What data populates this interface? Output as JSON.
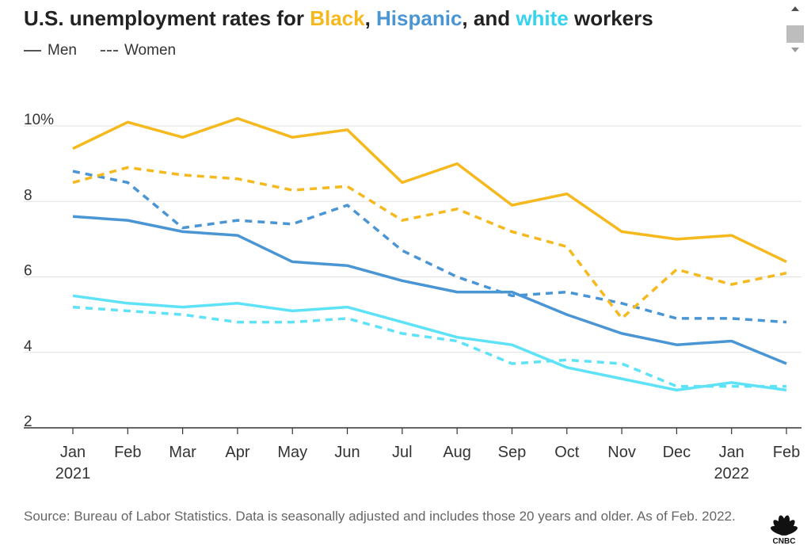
{
  "title": {
    "prefix": "U.S. unemployment rates for ",
    "group1": "Black",
    "sep1": ", ",
    "group2": "Hispanic",
    "sep2": ", and ",
    "group3": "white",
    "suffix": " workers"
  },
  "legend": {
    "men": "Men",
    "women": "Women"
  },
  "source": "Source: Bureau of Labor Statistics. Data is seasonally adjusted and includes those 20 years and older. As of Feb. 2022.",
  "logo_text": "CNBC",
  "colors": {
    "black": "#f5b91e",
    "hispanic": "#4a95d4",
    "white": "#5ee2f7",
    "grid": "#e1e1e1",
    "axis": "#333333"
  },
  "chart_data": {
    "type": "line",
    "title": "U.S. unemployment rates for Black, Hispanic, and white workers",
    "categories": [
      "Jan",
      "Feb",
      "Mar",
      "Apr",
      "May",
      "Jun",
      "Jul",
      "Aug",
      "Sep",
      "Oct",
      "Nov",
      "Dec",
      "Jan",
      "Feb"
    ],
    "year_labels": [
      {
        "index": 0,
        "label": "2021"
      },
      {
        "index": 12,
        "label": "2022"
      }
    ],
    "ylim": [
      2,
      10
    ],
    "yticks": [
      2,
      4,
      6,
      8,
      10
    ],
    "ytick_labels": [
      "2",
      "4",
      "6",
      "8",
      "10%"
    ],
    "grid": true,
    "series": [
      {
        "name": "Black Men",
        "group": "black",
        "style": "solid",
        "values": [
          9.4,
          10.1,
          9.7,
          10.2,
          9.7,
          9.9,
          8.5,
          9.0,
          7.9,
          8.2,
          7.2,
          7.0,
          7.1,
          6.4
        ]
      },
      {
        "name": "Black Women",
        "group": "black",
        "style": "dashed",
        "values": [
          8.5,
          8.9,
          8.7,
          8.6,
          8.3,
          8.4,
          7.5,
          7.8,
          7.2,
          6.8,
          4.9,
          6.2,
          5.8,
          6.1
        ]
      },
      {
        "name": "Hispanic Men",
        "group": "hispanic",
        "style": "solid",
        "values": [
          7.6,
          7.5,
          7.2,
          7.1,
          6.4,
          6.3,
          5.9,
          5.6,
          5.6,
          5.0,
          4.5,
          4.2,
          4.3,
          3.7
        ]
      },
      {
        "name": "Hispanic Women",
        "group": "hispanic",
        "style": "dashed",
        "values": [
          8.8,
          8.5,
          7.3,
          7.5,
          7.4,
          7.9,
          6.7,
          6.0,
          5.5,
          5.6,
          5.3,
          4.9,
          4.9,
          4.8
        ]
      },
      {
        "name": "white Men",
        "group": "white",
        "style": "solid",
        "values": [
          5.5,
          5.3,
          5.2,
          5.3,
          5.1,
          5.2,
          4.8,
          4.4,
          4.2,
          3.6,
          3.3,
          3.0,
          3.2,
          3.0
        ]
      },
      {
        "name": "white Women",
        "group": "white",
        "style": "dashed",
        "values": [
          5.2,
          5.1,
          5.0,
          4.8,
          4.8,
          4.9,
          4.5,
          4.3,
          3.7,
          3.8,
          3.7,
          3.1,
          3.1,
          3.1
        ]
      }
    ]
  }
}
